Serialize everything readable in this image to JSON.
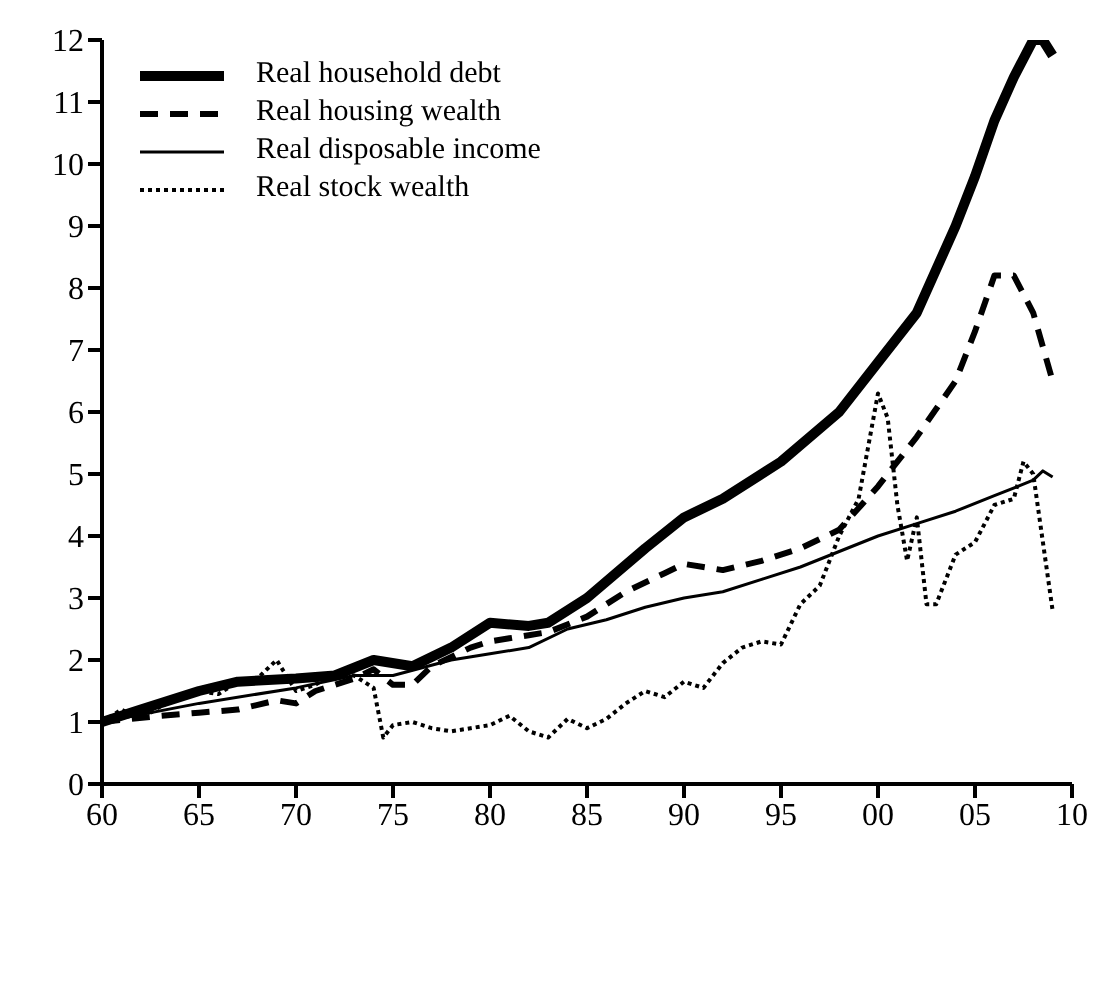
{
  "chart_data": {
    "type": "line",
    "xlim": [
      1960,
      2010
    ],
    "xticks": [
      {
        "value": 1960,
        "label": "60"
      },
      {
        "value": 1965,
        "label": "65"
      },
      {
        "value": 1970,
        "label": "70"
      },
      {
        "value": 1975,
        "label": "75"
      },
      {
        "value": 1980,
        "label": "80"
      },
      {
        "value": 1985,
        "label": "85"
      },
      {
        "value": 1990,
        "label": "90"
      },
      {
        "value": 1995,
        "label": "95"
      },
      {
        "value": 2000,
        "label": "00"
      },
      {
        "value": 2005,
        "label": "05"
      },
      {
        "value": 2010,
        "label": "10"
      }
    ],
    "ylim": [
      0,
      12
    ],
    "yticks": [
      0,
      1,
      2,
      3,
      4,
      5,
      6,
      7,
      8,
      9,
      10,
      11,
      12
    ],
    "grid": false,
    "legend": "top left",
    "marker": "none",
    "series": [
      {
        "name": "Real household debt",
        "color": "#000000",
        "line_style": "solid",
        "x": [
          1960,
          1962,
          1965,
          1967,
          1970,
          1972,
          1974,
          1976,
          1978,
          1980,
          1982,
          1983,
          1985,
          1988,
          1990,
          1992,
          1995,
          1998,
          2000,
          2002,
          2004,
          2005,
          2006,
          2007,
          2008,
          2008.5,
          2009
        ],
        "values": [
          1.0,
          1.2,
          1.5,
          1.65,
          1.7,
          1.75,
          2.0,
          1.9,
          2.2,
          2.6,
          2.55,
          2.6,
          3.0,
          3.8,
          4.3,
          4.6,
          5.2,
          6.0,
          6.8,
          7.6,
          9.0,
          9.8,
          10.7,
          11.4,
          12.0,
          12.0,
          11.75
        ]
      },
      {
        "name": "Real housing wealth",
        "color": "#000000",
        "line_style": "dashed",
        "x": [
          1960,
          1963,
          1965,
          1967,
          1969,
          1970,
          1971,
          1973,
          1974,
          1975,
          1976,
          1977,
          1979,
          1980,
          1981,
          1982,
          1983,
          1985,
          1987,
          1989,
          1990,
          1991,
          1992,
          1994,
          1996,
          1998,
          2000,
          2002,
          2004,
          2005,
          2006,
          2007,
          2008,
          2009
        ],
        "values": [
          1.0,
          1.1,
          1.15,
          1.2,
          1.35,
          1.3,
          1.5,
          1.7,
          1.85,
          1.6,
          1.6,
          1.9,
          2.2,
          2.3,
          2.35,
          2.4,
          2.45,
          2.7,
          3.1,
          3.4,
          3.55,
          3.5,
          3.45,
          3.6,
          3.8,
          4.1,
          4.8,
          5.6,
          6.5,
          7.3,
          8.2,
          8.2,
          7.6,
          6.5
        ]
      },
      {
        "name": "Real disposable income",
        "color": "#000000",
        "line_style": "solid",
        "x": [
          1960,
          1965,
          1970,
          1973,
          1975,
          1978,
          1980,
          1982,
          1984,
          1986,
          1988,
          1990,
          1992,
          1994,
          1996,
          1998,
          2000,
          2002,
          2004,
          2006,
          2008,
          2008.5,
          2009
        ],
        "values": [
          1.0,
          1.3,
          1.55,
          1.75,
          1.75,
          2.0,
          2.1,
          2.2,
          2.5,
          2.65,
          2.85,
          3.0,
          3.1,
          3.3,
          3.5,
          3.75,
          4.0,
          4.2,
          4.4,
          4.65,
          4.9,
          5.05,
          4.95
        ]
      },
      {
        "name": "Real stock wealth",
        "color": "#000000",
        "line_style": "dotted",
        "x": [
          1960,
          1961,
          1962,
          1963,
          1964,
          1965,
          1966,
          1967,
          1968,
          1969,
          1970,
          1971,
          1972,
          1973,
          1974,
          1974.5,
          1975,
          1976,
          1977,
          1978,
          1979,
          1980,
          1981,
          1982,
          1983,
          1984,
          1985,
          1986,
          1987,
          1988,
          1989,
          1990,
          1991,
          1992,
          1993,
          1994,
          1995,
          1996,
          1997,
          1998,
          1999,
          2000,
          2000.5,
          2001,
          2001.5,
          2002,
          2002.5,
          2003,
          2004,
          2005,
          2006,
          2007,
          2007.5,
          2008,
          2009
        ],
        "values": [
          1.0,
          1.2,
          1.05,
          1.25,
          1.4,
          1.5,
          1.45,
          1.65,
          1.7,
          2.0,
          1.5,
          1.6,
          1.8,
          1.75,
          1.55,
          0.75,
          0.95,
          1.0,
          0.9,
          0.85,
          0.9,
          0.95,
          1.1,
          0.85,
          0.75,
          1.05,
          0.9,
          1.05,
          1.3,
          1.5,
          1.4,
          1.65,
          1.55,
          1.95,
          2.2,
          2.3,
          2.25,
          2.9,
          3.2,
          4.0,
          4.6,
          6.3,
          5.9,
          4.5,
          3.6,
          4.3,
          2.9,
          2.9,
          3.7,
          3.9,
          4.5,
          4.6,
          5.2,
          5.0,
          2.8
        ]
      }
    ]
  }
}
